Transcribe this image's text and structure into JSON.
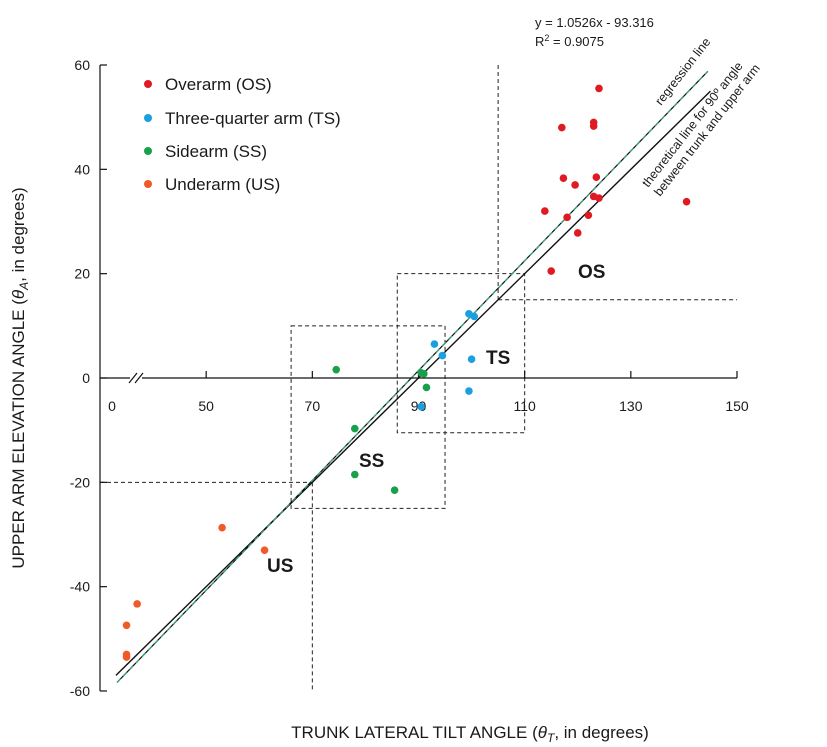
{
  "chart_data": {
    "type": "scatter",
    "xlabel": "TRUNK LATERAL TILT ANGLE (θT, in degrees)",
    "xlabel_parts": {
      "prefix": "TRUNK LATERAL TILT ANGLE (",
      "symbol": "θ",
      "subscript": "T",
      "suffix": ", in degrees)"
    },
    "ylabel": "UPPER ARM ELEVATION ANGLE (θA, in degrees)",
    "ylabel_parts": {
      "prefix": "UPPER ARM ELEVATION ANGLE (",
      "symbol": "θ",
      "subscript": "A",
      "suffix": ", in degrees)"
    },
    "x_ticks": [
      0,
      50,
      70,
      90,
      110,
      130,
      150
    ],
    "x_axis_break": "between 0 and 50",
    "xlim": [
      30,
      150
    ],
    "y_ticks": [
      60,
      40,
      20,
      0,
      -20,
      -40,
      -60
    ],
    "ylim": [
      -60,
      60
    ],
    "grid": false,
    "legend_position": "top-left",
    "regression": {
      "equation": "y = 1.0526x - 93.316",
      "r2_prefix": "R",
      "r2_exp": "2",
      "r2_suffix": " = 0.9075",
      "slope": 1.0526,
      "intercept": -93.316,
      "label": "regression line",
      "color": "#3aa37a"
    },
    "theoretical_line": {
      "label_line1": "theoretical line for 90º angle",
      "label_line2": "between trunk and upper arm",
      "slope": 1,
      "intercept": -90,
      "color": "#111111"
    },
    "series": [
      {
        "name": "Overarm (OS)",
        "color": "#e01a22",
        "points": [
          [
            124,
            55.5
          ],
          [
            117,
            48
          ],
          [
            123,
            49
          ],
          [
            123,
            48.3
          ],
          [
            117.3,
            38.3
          ],
          [
            123.5,
            38.5
          ],
          [
            119.5,
            37
          ],
          [
            123,
            34.8
          ],
          [
            124,
            34.5
          ],
          [
            140.5,
            33.8
          ],
          [
            113.8,
            32
          ],
          [
            118,
            30.8
          ],
          [
            122,
            31.2
          ],
          [
            120,
            27.8
          ],
          [
            115,
            20.5
          ]
        ]
      },
      {
        "name": "Three-quarter arm (TS)",
        "color": "#1aa0e0",
        "points": [
          [
            99.5,
            12.3
          ],
          [
            100.5,
            11.8
          ],
          [
            93,
            6.5
          ],
          [
            94.5,
            4.3
          ],
          [
            100,
            3.6
          ],
          [
            99.5,
            -2.5
          ],
          [
            90.5,
            -5.5
          ]
        ]
      },
      {
        "name": "Sidearm (SS)",
        "color": "#19a04a",
        "points": [
          [
            74.5,
            1.6
          ],
          [
            90.5,
            1.0
          ],
          [
            91,
            0.8
          ],
          [
            91.5,
            -1.8
          ],
          [
            78,
            -9.7
          ],
          [
            78,
            -18.5
          ],
          [
            85.5,
            -21.5
          ]
        ]
      },
      {
        "name": "Underarm (US)",
        "color": "#f05a28",
        "points": [
          [
            53,
            -28.7
          ],
          [
            61,
            -33
          ],
          [
            37,
            -43.3
          ],
          [
            35,
            -47.4
          ],
          [
            35,
            -53
          ],
          [
            35,
            -53.5
          ]
        ]
      }
    ],
    "region_labels": [
      "OS",
      "TS",
      "SS",
      "US"
    ],
    "regions": [
      {
        "name": "OS",
        "x": [
          105,
          150
        ],
        "y": [
          15,
          60
        ]
      },
      {
        "name": "TS",
        "x": [
          86,
          110
        ],
        "y": [
          -10.5,
          20
        ]
      },
      {
        "name": "SS",
        "x": [
          66,
          95
        ],
        "y": [
          -25,
          10
        ]
      },
      {
        "name": "US",
        "x": [
          30,
          70
        ],
        "y": [
          -60,
          -20
        ]
      }
    ]
  }
}
